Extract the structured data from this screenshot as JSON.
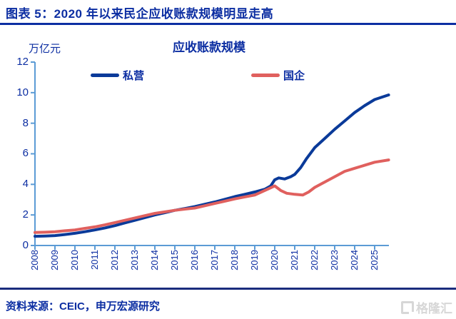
{
  "figure": {
    "title": "图表 5：2020 年以来民企应收账款规模明显走高",
    "source_note": "资料来源：CEIC，申万宏源研究",
    "watermark": "格隆汇"
  },
  "colors": {
    "text_blue": "#0C2EA2",
    "axis_blue": "#5B9BD5",
    "private_blue": "#0A3A99",
    "soe_red": "#E0605E",
    "title_rule": "#0C2EA2",
    "footer_rule": "#1A2C7D",
    "watermark_gray": "#D7D7D7"
  },
  "chart_data": {
    "type": "line",
    "title": "应收账款规模",
    "unit_label": "万亿元",
    "xlabel": "",
    "ylabel": "万亿元",
    "ylim": [
      0,
      12
    ],
    "y_tick_step": 2,
    "y_tick_labels": [
      "12",
      "10",
      "8",
      "6",
      "4",
      "2",
      "0"
    ],
    "x_tick_labels": [
      "2008",
      "2009",
      "2010",
      "2011",
      "2012",
      "2013",
      "2014",
      "2015",
      "2016",
      "2017",
      "2018",
      "2019",
      "2020",
      "2021",
      "2022",
      "2023",
      "2024",
      "2025"
    ],
    "x_range": [
      2008,
      2025.7
    ],
    "grid": false,
    "legend_position": "top",
    "series": [
      {
        "key": "private",
        "name": "私营",
        "color": "#0A3A99",
        "points": [
          [
            2008,
            0.6
          ],
          [
            2008.5,
            0.62
          ],
          [
            2009,
            0.65
          ],
          [
            2009.5,
            0.72
          ],
          [
            2010,
            0.8
          ],
          [
            2010.5,
            0.9
          ],
          [
            2011,
            1.02
          ],
          [
            2011.5,
            1.15
          ],
          [
            2012,
            1.3
          ],
          [
            2012.5,
            1.48
          ],
          [
            2013,
            1.65
          ],
          [
            2013.5,
            1.82
          ],
          [
            2014,
            2.0
          ],
          [
            2014.5,
            2.15
          ],
          [
            2015,
            2.3
          ],
          [
            2015.5,
            2.42
          ],
          [
            2016,
            2.55
          ],
          [
            2016.5,
            2.7
          ],
          [
            2017,
            2.85
          ],
          [
            2017.5,
            3.02
          ],
          [
            2018,
            3.2
          ],
          [
            2018.5,
            3.35
          ],
          [
            2019,
            3.5
          ],
          [
            2019.5,
            3.68
          ],
          [
            2019.8,
            3.9
          ],
          [
            2020,
            4.3
          ],
          [
            2020.2,
            4.42
          ],
          [
            2020.5,
            4.35
          ],
          [
            2020.8,
            4.5
          ],
          [
            2021,
            4.65
          ],
          [
            2021.3,
            5.1
          ],
          [
            2021.6,
            5.7
          ],
          [
            2022,
            6.4
          ],
          [
            2022.5,
            7.0
          ],
          [
            2023,
            7.6
          ],
          [
            2023.5,
            8.15
          ],
          [
            2024,
            8.7
          ],
          [
            2024.5,
            9.15
          ],
          [
            2025,
            9.55
          ],
          [
            2025.7,
            9.85
          ]
        ]
      },
      {
        "key": "soe",
        "name": "国企",
        "color": "#E0605E",
        "points": [
          [
            2008,
            0.85
          ],
          [
            2008.5,
            0.87
          ],
          [
            2009,
            0.9
          ],
          [
            2009.5,
            0.96
          ],
          [
            2010,
            1.02
          ],
          [
            2010.5,
            1.12
          ],
          [
            2011,
            1.22
          ],
          [
            2011.5,
            1.35
          ],
          [
            2012,
            1.5
          ],
          [
            2012.5,
            1.65
          ],
          [
            2013,
            1.8
          ],
          [
            2013.5,
            1.95
          ],
          [
            2014,
            2.1
          ],
          [
            2014.5,
            2.2
          ],
          [
            2015,
            2.3
          ],
          [
            2015.5,
            2.38
          ],
          [
            2016,
            2.45
          ],
          [
            2016.5,
            2.6
          ],
          [
            2017,
            2.75
          ],
          [
            2017.5,
            2.9
          ],
          [
            2018,
            3.05
          ],
          [
            2018.5,
            3.18
          ],
          [
            2019,
            3.3
          ],
          [
            2019.5,
            3.6
          ],
          [
            2020,
            3.9
          ],
          [
            2020.3,
            3.6
          ],
          [
            2020.6,
            3.42
          ],
          [
            2021,
            3.35
          ],
          [
            2021.4,
            3.3
          ],
          [
            2021.7,
            3.5
          ],
          [
            2022,
            3.8
          ],
          [
            2022.5,
            4.15
          ],
          [
            2023,
            4.5
          ],
          [
            2023.5,
            4.85
          ],
          [
            2024,
            5.05
          ],
          [
            2024.5,
            5.25
          ],
          [
            2025,
            5.45
          ],
          [
            2025.7,
            5.6
          ]
        ]
      }
    ]
  }
}
